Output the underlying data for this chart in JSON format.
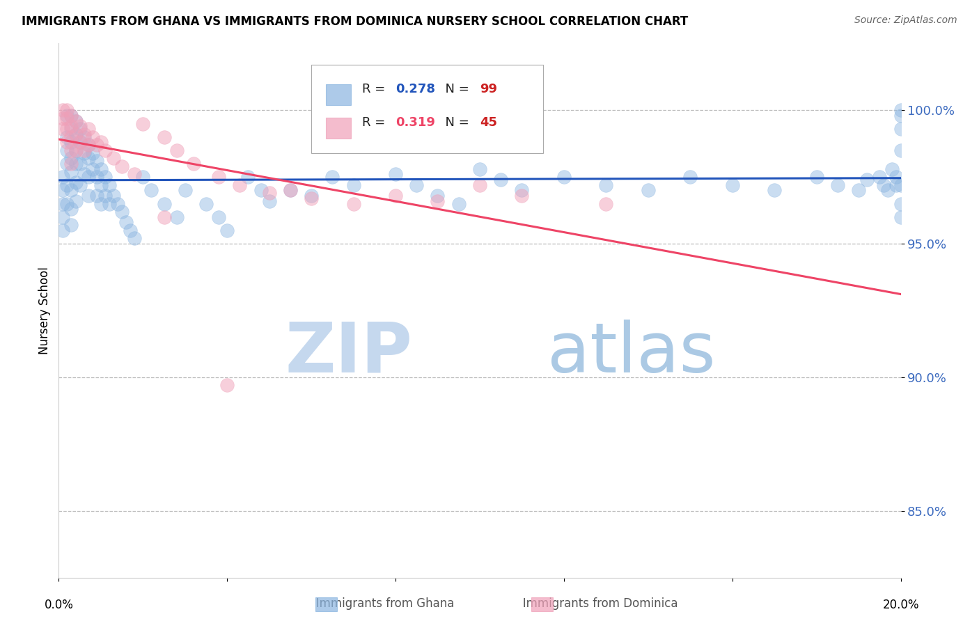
{
  "title": "IMMIGRANTS FROM GHANA VS IMMIGRANTS FROM DOMINICA NURSERY SCHOOL CORRELATION CHART",
  "source": "Source: ZipAtlas.com",
  "ylabel": "Nursery School",
  "ghana_R": 0.278,
  "ghana_N": 99,
  "dominica_R": 0.319,
  "dominica_N": 45,
  "ghana_color": "#8ab4e0",
  "dominica_color": "#f0a0b8",
  "ghana_line_color": "#2255bb",
  "dominica_line_color": "#ee4466",
  "xlim": [
    0.0,
    0.2
  ],
  "ylim": [
    0.825,
    1.025
  ],
  "yticks": [
    0.85,
    0.9,
    0.95,
    1.0
  ],
  "ytick_labels": [
    "85.0%",
    "90.0%",
    "95.0%",
    "100.0%"
  ],
  "ghana_scatter_x": [
    0.001,
    0.001,
    0.001,
    0.001,
    0.001,
    0.002,
    0.002,
    0.002,
    0.002,
    0.002,
    0.002,
    0.003,
    0.003,
    0.003,
    0.003,
    0.003,
    0.003,
    0.003,
    0.003,
    0.004,
    0.004,
    0.004,
    0.004,
    0.004,
    0.004,
    0.005,
    0.005,
    0.005,
    0.005,
    0.006,
    0.006,
    0.006,
    0.007,
    0.007,
    0.007,
    0.007,
    0.008,
    0.008,
    0.009,
    0.009,
    0.009,
    0.01,
    0.01,
    0.01,
    0.011,
    0.011,
    0.012,
    0.012,
    0.013,
    0.014,
    0.015,
    0.016,
    0.017,
    0.018,
    0.02,
    0.022,
    0.025,
    0.028,
    0.03,
    0.035,
    0.038,
    0.04,
    0.045,
    0.048,
    0.05,
    0.055,
    0.06,
    0.065,
    0.07,
    0.08,
    0.085,
    0.09,
    0.095,
    0.1,
    0.105,
    0.11,
    0.12,
    0.13,
    0.14,
    0.15,
    0.16,
    0.17,
    0.18,
    0.185,
    0.19,
    0.192,
    0.195,
    0.196,
    0.197,
    0.198,
    0.199,
    0.199,
    0.2,
    0.2,
    0.2,
    0.2,
    0.2,
    0.2,
    0.2
  ],
  "ghana_scatter_y": [
    0.975,
    0.97,
    0.965,
    0.96,
    0.955,
    0.998,
    0.99,
    0.985,
    0.98,
    0.972,
    0.965,
    0.998,
    0.993,
    0.988,
    0.982,
    0.977,
    0.97,
    0.963,
    0.957,
    0.996,
    0.991,
    0.985,
    0.98,
    0.973,
    0.966,
    0.993,
    0.988,
    0.98,
    0.972,
    0.99,
    0.984,
    0.976,
    0.987,
    0.982,
    0.975,
    0.968,
    0.984,
    0.978,
    0.981,
    0.975,
    0.968,
    0.978,
    0.972,
    0.965,
    0.975,
    0.968,
    0.972,
    0.965,
    0.968,
    0.965,
    0.962,
    0.958,
    0.955,
    0.952,
    0.975,
    0.97,
    0.965,
    0.96,
    0.97,
    0.965,
    0.96,
    0.955,
    0.975,
    0.97,
    0.966,
    0.97,
    0.968,
    0.975,
    0.972,
    0.976,
    0.972,
    0.968,
    0.965,
    0.978,
    0.974,
    0.97,
    0.975,
    0.972,
    0.97,
    0.975,
    0.972,
    0.97,
    0.975,
    0.972,
    0.97,
    0.974,
    0.975,
    0.972,
    0.97,
    0.978,
    0.975,
    0.972,
    0.998,
    0.993,
    0.985,
    0.972,
    0.965,
    0.96,
    1.0
  ],
  "dominica_scatter_x": [
    0.001,
    0.001,
    0.001,
    0.002,
    0.002,
    0.002,
    0.002,
    0.003,
    0.003,
    0.003,
    0.003,
    0.003,
    0.004,
    0.004,
    0.004,
    0.005,
    0.005,
    0.006,
    0.006,
    0.007,
    0.007,
    0.008,
    0.009,
    0.01,
    0.011,
    0.013,
    0.015,
    0.018,
    0.02,
    0.025,
    0.028,
    0.032,
    0.038,
    0.043,
    0.05,
    0.055,
    0.06,
    0.07,
    0.08,
    0.09,
    0.1,
    0.11,
    0.13,
    0.025,
    0.04
  ],
  "dominica_scatter_y": [
    1.0,
    0.997,
    0.993,
    1.0,
    0.997,
    0.993,
    0.988,
    0.998,
    0.994,
    0.99,
    0.985,
    0.98,
    0.996,
    0.991,
    0.985,
    0.994,
    0.988,
    0.991,
    0.985,
    0.993,
    0.987,
    0.99,
    0.987,
    0.988,
    0.985,
    0.982,
    0.979,
    0.976,
    0.995,
    0.99,
    0.985,
    0.98,
    0.975,
    0.972,
    0.969,
    0.97,
    0.967,
    0.965,
    0.968,
    0.966,
    0.972,
    0.968,
    0.965,
    0.96,
    0.897
  ]
}
